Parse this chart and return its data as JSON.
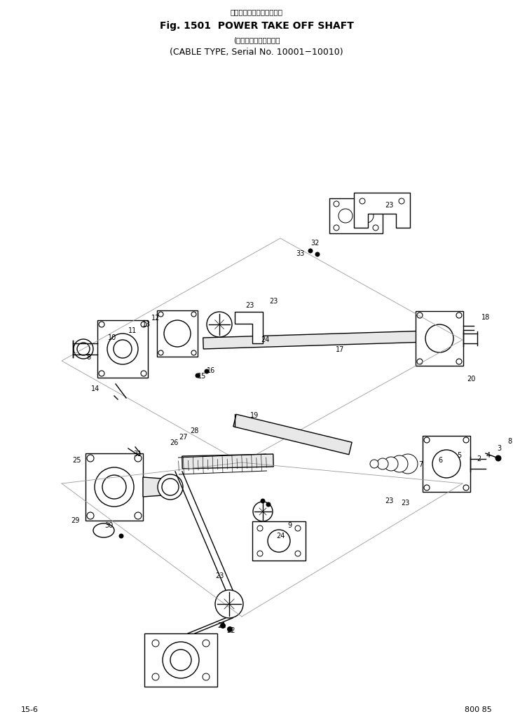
{
  "title_line1": "パワーテイクオフシャフト",
  "title_line2": "Fig. 1501  POWER TAKE OFF SHAFT",
  "title_line3": "(ケーブル式、適用号機",
  "title_line4": "(CABLE TYPE, Serial No. 10001−10010)",
  "page_bottom_left": "15-6",
  "page_bottom_right": "800 85",
  "bg_color": "#ffffff",
  "lc": "#000000",
  "fig_width": 7.32,
  "fig_height": 10.29,
  "dpi": 100
}
